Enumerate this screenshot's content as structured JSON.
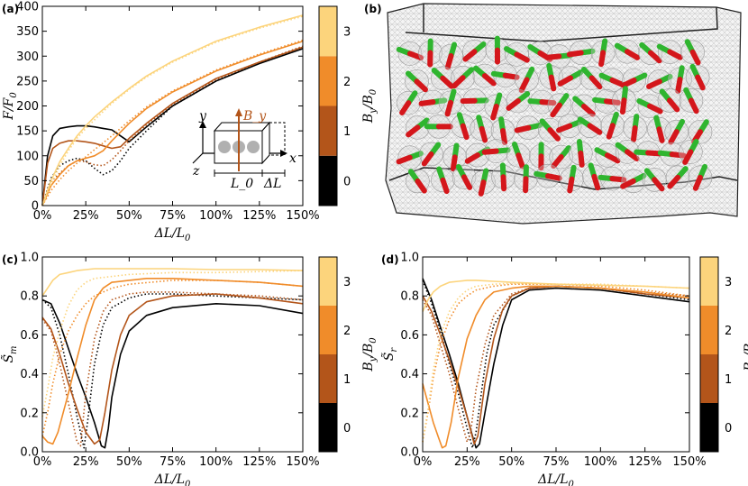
{
  "panels": {
    "a": "(a)",
    "b": "(b)",
    "c": "(c)",
    "d": "(d)"
  },
  "colors": {
    "B0": "#000000",
    "B1": "#b3551a",
    "B2": "#f08c2a",
    "B3": "#fcd47c"
  },
  "colorbar": {
    "label": "B_y/B_0",
    "ticks": [
      "0",
      "1",
      "2",
      "3"
    ],
    "colors": [
      "#000000",
      "#b3551a",
      "#f08c2a",
      "#fcd47c"
    ]
  },
  "inset": {
    "y": "y",
    "x": "x",
    "z": "z",
    "By": "B_y",
    "L0": "L_0",
    "dL": "ΔL"
  },
  "chart_data": [
    {
      "id": "a",
      "type": "line",
      "xlabel": "ΔL/L_0",
      "ylabel": "F/F_0",
      "xlim": [
        0,
        150
      ],
      "ylim": [
        0,
        400
      ],
      "xticks": [
        "0%",
        "25%",
        "50%",
        "75%",
        "100%",
        "125%",
        "150%"
      ],
      "yticks": [
        "0",
        "50",
        "100",
        "150",
        "200",
        "250",
        "300",
        "350",
        "400"
      ],
      "series": [
        {
          "color": "#000000",
          "style": "solid",
          "x": [
            0,
            3,
            6,
            10,
            15,
            20,
            25,
            30,
            35,
            40,
            45,
            50,
            60,
            75,
            100,
            125,
            150
          ],
          "y": [
            0,
            100,
            140,
            155,
            158,
            160,
            160,
            158,
            155,
            152,
            140,
            128,
            158,
            200,
            250,
            285,
            315
          ]
        },
        {
          "color": "#000000",
          "style": "dotted",
          "x": [
            0,
            5,
            10,
            15,
            20,
            25,
            30,
            35,
            40,
            45,
            50,
            60,
            75,
            100,
            125,
            150
          ],
          "y": [
            0,
            55,
            80,
            90,
            95,
            90,
            75,
            62,
            70,
            90,
            115,
            150,
            200,
            250,
            287,
            318
          ]
        },
        {
          "color": "#b3551a",
          "style": "solid",
          "x": [
            0,
            3,
            6,
            10,
            15,
            20,
            25,
            30,
            35,
            40,
            45,
            50,
            60,
            75,
            100,
            125,
            150
          ],
          "y": [
            0,
            85,
            115,
            125,
            130,
            130,
            128,
            125,
            120,
            115,
            118,
            135,
            165,
            205,
            255,
            288,
            318
          ]
        },
        {
          "color": "#b3551a",
          "style": "dotted",
          "x": [
            0,
            5,
            10,
            15,
            20,
            25,
            30,
            35,
            40,
            45,
            50,
            60,
            75,
            100,
            125,
            150
          ],
          "y": [
            0,
            48,
            65,
            80,
            90,
            88,
            82,
            80,
            92,
            110,
            130,
            162,
            203,
            253,
            288,
            320
          ]
        },
        {
          "color": "#f08c2a",
          "style": "solid",
          "x": [
            0,
            5,
            10,
            15,
            20,
            25,
            30,
            35,
            40,
            50,
            60,
            75,
            100,
            125,
            150
          ],
          "y": [
            0,
            40,
            62,
            80,
            90,
            95,
            100,
            110,
            130,
            165,
            195,
            228,
            270,
            302,
            330
          ]
        },
        {
          "color": "#f08c2a",
          "style": "dotted",
          "x": [
            0,
            5,
            10,
            15,
            20,
            25,
            30,
            40,
            50,
            60,
            75,
            100,
            125,
            150
          ],
          "y": [
            0,
            30,
            52,
            70,
            85,
            98,
            112,
            140,
            170,
            198,
            230,
            272,
            304,
            332
          ]
        },
        {
          "color": "#fcd47c",
          "style": "solid",
          "x": [
            0,
            5,
            10,
            15,
            20,
            25,
            30,
            40,
            50,
            60,
            75,
            100,
            125,
            150
          ],
          "y": [
            0,
            50,
            88,
            115,
            140,
            160,
            178,
            208,
            235,
            260,
            290,
            330,
            358,
            382
          ]
        },
        {
          "color": "#fcd47c",
          "style": "dotted",
          "x": [
            0,
            5,
            10,
            15,
            20,
            25,
            30,
            40,
            50,
            60,
            75,
            100,
            125,
            150
          ],
          "y": [
            0,
            42,
            80,
            110,
            135,
            155,
            172,
            205,
            233,
            258,
            288,
            328,
            356,
            380
          ]
        }
      ]
    },
    {
      "id": "c",
      "type": "line",
      "xlabel": "ΔL/L_0",
      "ylabel": "S̃_m",
      "xlim": [
        0,
        150
      ],
      "ylim": [
        0,
        1
      ],
      "xticks": [
        "0%",
        "25%",
        "50%",
        "75%",
        "100%",
        "125%",
        "150%"
      ],
      "yticks": [
        "0.0",
        "0.2",
        "0.4",
        "0.6",
        "0.8",
        "1.0"
      ],
      "series": [
        {
          "color": "#000000",
          "style": "solid",
          "x": [
            0,
            5,
            10,
            15,
            20,
            25,
            30,
            34,
            36,
            38,
            40,
            45,
            50,
            60,
            75,
            100,
            125,
            150
          ],
          "y": [
            0.78,
            0.76,
            0.66,
            0.53,
            0.4,
            0.28,
            0.15,
            0.03,
            0.02,
            0.12,
            0.28,
            0.5,
            0.62,
            0.7,
            0.74,
            0.76,
            0.75,
            0.71
          ]
        },
        {
          "color": "#000000",
          "style": "dotted",
          "x": [
            0,
            5,
            10,
            15,
            20,
            24,
            26,
            30,
            35,
            40,
            50,
            60,
            75,
            100,
            125,
            150
          ],
          "y": [
            0.78,
            0.74,
            0.6,
            0.4,
            0.18,
            0.02,
            0.15,
            0.45,
            0.65,
            0.74,
            0.79,
            0.81,
            0.81,
            0.8,
            0.79,
            0.78
          ]
        },
        {
          "color": "#b3551a",
          "style": "solid",
          "x": [
            0,
            5,
            10,
            15,
            20,
            25,
            30,
            33,
            36,
            40,
            45,
            50,
            60,
            75,
            100,
            125,
            150
          ],
          "y": [
            0.69,
            0.63,
            0.5,
            0.35,
            0.22,
            0.1,
            0.04,
            0.06,
            0.2,
            0.42,
            0.6,
            0.7,
            0.77,
            0.8,
            0.81,
            0.79,
            0.76
          ]
        },
        {
          "color": "#b3551a",
          "style": "dotted",
          "x": [
            0,
            5,
            10,
            15,
            20,
            22,
            25,
            30,
            35,
            40,
            50,
            60,
            75,
            100,
            125,
            150
          ],
          "y": [
            0.68,
            0.62,
            0.45,
            0.25,
            0.05,
            0.03,
            0.3,
            0.58,
            0.72,
            0.78,
            0.81,
            0.82,
            0.82,
            0.81,
            0.8,
            0.78
          ]
        },
        {
          "color": "#f08c2a",
          "style": "solid",
          "x": [
            0,
            3,
            6,
            9,
            12,
            15,
            20,
            25,
            30,
            35,
            40,
            50,
            60,
            75,
            100,
            125,
            150
          ],
          "y": [
            0.08,
            0.05,
            0.04,
            0.1,
            0.2,
            0.3,
            0.48,
            0.65,
            0.78,
            0.84,
            0.87,
            0.88,
            0.89,
            0.89,
            0.88,
            0.87,
            0.85
          ]
        },
        {
          "color": "#f08c2a",
          "style": "dotted",
          "x": [
            0,
            3,
            6,
            10,
            15,
            20,
            25,
            30,
            40,
            50,
            75,
            100,
            125,
            150
          ],
          "y": [
            0.08,
            0.2,
            0.35,
            0.5,
            0.62,
            0.7,
            0.76,
            0.8,
            0.84,
            0.86,
            0.88,
            0.88,
            0.87,
            0.85
          ]
        },
        {
          "color": "#fcd47c",
          "style": "solid",
          "x": [
            0,
            3,
            6,
            10,
            15,
            20,
            25,
            30,
            40,
            50,
            75,
            100,
            125,
            150
          ],
          "y": [
            0.8,
            0.84,
            0.88,
            0.91,
            0.92,
            0.93,
            0.935,
            0.94,
            0.94,
            0.94,
            0.94,
            0.935,
            0.935,
            0.93
          ]
        },
        {
          "color": "#fcd47c",
          "style": "dotted",
          "x": [
            0,
            3,
            6,
            10,
            15,
            20,
            25,
            30,
            40,
            50,
            75,
            100,
            125,
            150
          ],
          "y": [
            0.18,
            0.32,
            0.48,
            0.62,
            0.75,
            0.83,
            0.87,
            0.89,
            0.9,
            0.91,
            0.92,
            0.92,
            0.925,
            0.93
          ]
        }
      ]
    },
    {
      "id": "d",
      "type": "line",
      "xlabel": "ΔL/L_0",
      "ylabel": "S̃_r",
      "xlim": [
        0,
        150
      ],
      "ylim": [
        0,
        1
      ],
      "xticks": [
        "0%",
        "25%",
        "50%",
        "75%",
        "100%",
        "125%",
        "150%"
      ],
      "yticks": [
        "0.0",
        "0.2",
        "0.4",
        "0.6",
        "0.8",
        "1.0"
      ],
      "series": [
        {
          "color": "#000000",
          "style": "solid",
          "x": [
            0,
            5,
            10,
            15,
            20,
            25,
            28,
            30,
            32,
            35,
            40,
            45,
            50,
            60,
            75,
            100,
            125,
            150
          ],
          "y": [
            0.89,
            0.78,
            0.64,
            0.5,
            0.35,
            0.18,
            0.08,
            0.02,
            0.04,
            0.2,
            0.45,
            0.65,
            0.78,
            0.83,
            0.84,
            0.83,
            0.8,
            0.77
          ]
        },
        {
          "color": "#000000",
          "style": "dotted",
          "x": [
            0,
            5,
            10,
            15,
            20,
            25,
            28,
            30,
            33,
            36,
            40,
            50,
            60,
            75,
            100,
            125,
            150
          ],
          "y": [
            0.88,
            0.76,
            0.62,
            0.45,
            0.3,
            0.12,
            0.02,
            0.1,
            0.3,
            0.5,
            0.65,
            0.8,
            0.84,
            0.85,
            0.84,
            0.81,
            0.78
          ]
        },
        {
          "color": "#b3551a",
          "style": "solid",
          "x": [
            0,
            5,
            10,
            15,
            20,
            25,
            29,
            31,
            35,
            40,
            45,
            50,
            60,
            75,
            100,
            125,
            150
          ],
          "y": [
            0.8,
            0.72,
            0.6,
            0.47,
            0.33,
            0.18,
            0.04,
            0.08,
            0.35,
            0.58,
            0.73,
            0.8,
            0.84,
            0.85,
            0.84,
            0.81,
            0.79
          ]
        },
        {
          "color": "#b3551a",
          "style": "dotted",
          "x": [
            0,
            5,
            10,
            15,
            20,
            25,
            27,
            30,
            35,
            40,
            50,
            60,
            75,
            100,
            125,
            150
          ],
          "y": [
            0.78,
            0.7,
            0.55,
            0.4,
            0.22,
            0.05,
            0.1,
            0.32,
            0.55,
            0.7,
            0.81,
            0.84,
            0.85,
            0.84,
            0.82,
            0.8
          ]
        },
        {
          "color": "#f08c2a",
          "style": "solid",
          "x": [
            0,
            3,
            6,
            9,
            11,
            13,
            16,
            20,
            25,
            30,
            35,
            40,
            50,
            60,
            75,
            100,
            125,
            150
          ],
          "y": [
            0.35,
            0.25,
            0.15,
            0.07,
            0.02,
            0.03,
            0.15,
            0.38,
            0.58,
            0.7,
            0.78,
            0.82,
            0.84,
            0.85,
            0.85,
            0.84,
            0.82,
            0.79
          ]
        },
        {
          "color": "#f08c2a",
          "style": "dotted",
          "x": [
            0,
            3,
            6,
            10,
            15,
            20,
            25,
            30,
            40,
            50,
            75,
            100,
            125,
            150
          ],
          "y": [
            0.05,
            0.2,
            0.38,
            0.55,
            0.68,
            0.76,
            0.8,
            0.83,
            0.85,
            0.86,
            0.86,
            0.85,
            0.83,
            0.8
          ]
        },
        {
          "color": "#fcd47c",
          "style": "solid",
          "x": [
            0,
            3,
            6,
            10,
            15,
            20,
            25,
            30,
            40,
            50,
            75,
            100,
            125,
            150
          ],
          "y": [
            0.72,
            0.78,
            0.82,
            0.85,
            0.87,
            0.875,
            0.88,
            0.88,
            0.875,
            0.87,
            0.86,
            0.855,
            0.85,
            0.84
          ]
        },
        {
          "color": "#fcd47c",
          "style": "dotted",
          "x": [
            0,
            3,
            6,
            10,
            15,
            20,
            25,
            30,
            40,
            50,
            75,
            100,
            125,
            150
          ],
          "y": [
            0.05,
            0.22,
            0.42,
            0.6,
            0.72,
            0.79,
            0.83,
            0.85,
            0.86,
            0.865,
            0.86,
            0.86,
            0.85,
            0.84
          ]
        }
      ]
    }
  ]
}
